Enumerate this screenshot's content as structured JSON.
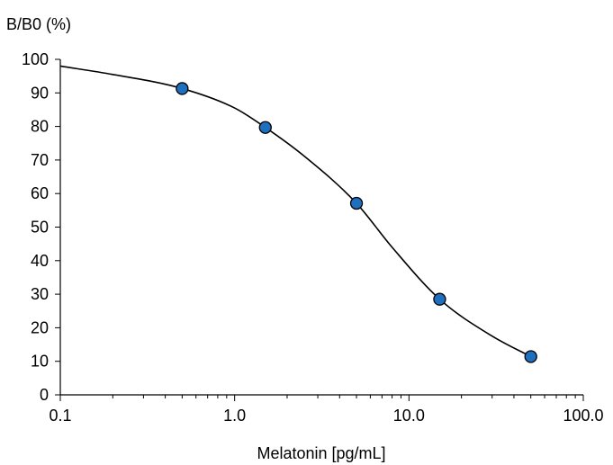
{
  "chart_data": {
    "type": "scatter",
    "title": "",
    "xlabel": "Melatonin [pg/mL]",
    "ylabel": "B/B0 (%)",
    "x_scale": "log",
    "xlim": [
      0.1,
      100.0
    ],
    "ylim": [
      0,
      100
    ],
    "x_ticks": [
      "0.1",
      "1.0",
      "10.0",
      "100.0"
    ],
    "y_ticks": [
      "0",
      "10",
      "20",
      "30",
      "40",
      "50",
      "60",
      "70",
      "80",
      "90",
      "100"
    ],
    "grid": false,
    "series": [
      {
        "type": "scatter",
        "x": [
          0.5,
          1.5,
          5.0,
          15.0,
          50.0
        ],
        "y": [
          91.3,
          79.7,
          57.1,
          28.5,
          11.4
        ],
        "marker_color": "#1f6fbf"
      },
      {
        "type": "line",
        "x": [
          0.1,
          0.2,
          0.5,
          1.0,
          1.5,
          2.5,
          5.0,
          8.0,
          15.0,
          30.0,
          50.0
        ],
        "y": [
          98.0,
          95.5,
          91.3,
          85.5,
          79.7,
          71.2,
          57.1,
          44.0,
          28.5,
          17.5,
          11.4
        ],
        "line_color": "#000000"
      }
    ]
  }
}
